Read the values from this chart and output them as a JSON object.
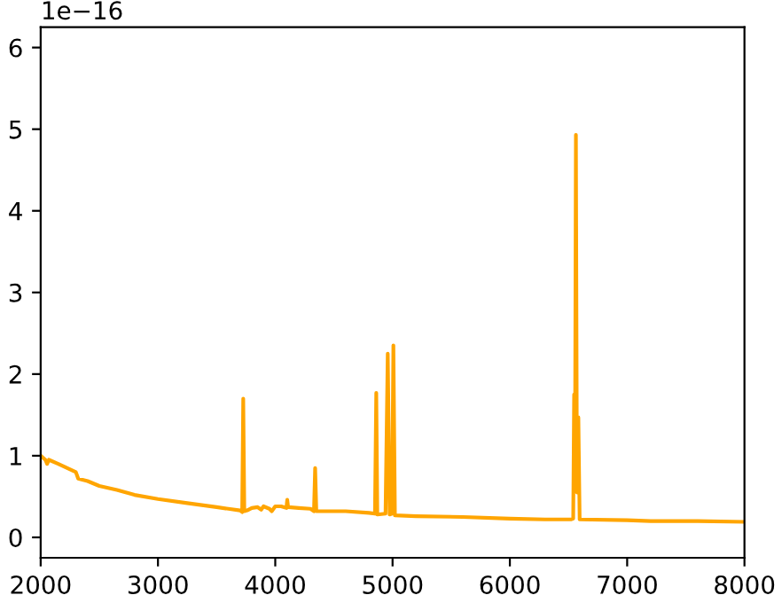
{
  "chart_data": {
    "type": "line",
    "annotations": [
      "1e−16"
    ],
    "xlim": [
      2000,
      8000
    ],
    "xticks": [
      2000,
      3000,
      4000,
      5000,
      6000,
      7000,
      8000
    ],
    "ylim": [
      -0.25,
      6.25
    ],
    "yticks": [
      0,
      1,
      2,
      3,
      4,
      5,
      6
    ],
    "grid": false,
    "marker": "none",
    "line_style": "solid",
    "series": [
      {
        "color": "#ffa500",
        "x": [
          2000,
          2040,
          2055,
          2070,
          2150,
          2300,
          2320,
          2400,
          2500,
          2650,
          2800,
          3000,
          3250,
          3500,
          3700,
          3718,
          3727,
          3736,
          3760,
          3800,
          3850,
          3880,
          3900,
          3950,
          3970,
          4000,
          4050,
          4095,
          4102,
          4110,
          4200,
          4300,
          4330,
          4340,
          4350,
          4600,
          4800,
          4850,
          4861,
          4870,
          4940,
          4959,
          4975,
          4995,
          5007,
          5020,
          5200,
          5600,
          6000,
          6300,
          6520,
          6540,
          6548,
          6555,
          6563,
          6572,
          6584,
          6595,
          7000,
          7200,
          7600,
          8000
        ],
        "values": [
          1.0,
          0.95,
          0.9,
          0.95,
          0.9,
          0.8,
          0.72,
          0.69,
          0.63,
          0.58,
          0.52,
          0.47,
          0.42,
          0.37,
          0.33,
          0.31,
          1.7,
          0.32,
          0.33,
          0.36,
          0.37,
          0.34,
          0.38,
          0.35,
          0.32,
          0.38,
          0.38,
          0.36,
          0.46,
          0.37,
          0.36,
          0.35,
          0.32,
          0.85,
          0.32,
          0.32,
          0.3,
          0.29,
          1.77,
          0.28,
          0.29,
          2.25,
          0.28,
          0.29,
          2.35,
          0.27,
          0.26,
          0.25,
          0.23,
          0.22,
          0.22,
          0.23,
          1.75,
          0.7,
          4.93,
          0.55,
          1.47,
          0.22,
          0.21,
          0.2,
          0.2,
          0.19
        ]
      }
    ]
  }
}
